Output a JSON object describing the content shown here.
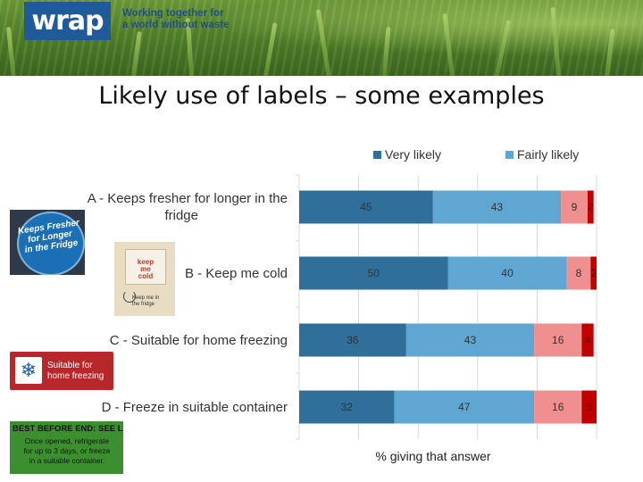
{
  "header": {
    "logo_text": "wrap",
    "tagline_line1": "Working together for",
    "tagline_line2": "a world without waste"
  },
  "slide_title": "Likely use of labels – some examples",
  "images": {
    "a_line1": "Keeps Fresher",
    "a_line2": "for Longer",
    "a_line3": "in the Fridge",
    "b_line1": "keep",
    "b_line2": "me",
    "b_line3": "cold",
    "b_small1": "Keep me in",
    "b_small2": "the fridge",
    "c_line1": "Suitable for",
    "c_line2": "home freezing",
    "d_head": "BEST BEFORE END: SEE LID",
    "d_line1": "Once opened, refrigerate",
    "d_line2": "for up to 3 days, or freeze",
    "d_line3": "in a suitable container."
  },
  "colors": {
    "very_likely": "#2f6f9a",
    "fairly_likely": "#5fa6d2",
    "not_very_likely": "#f08f8f",
    "not_at_all_likely": "#c00000"
  },
  "chart_data": {
    "type": "bar",
    "orientation": "horizontal",
    "stacked": true,
    "categories": [
      "A - Keeps fresher for longer in the fridge",
      "B - Keep me cold",
      "C - Suitable for home freezing",
      "D - Freeze in suitable container"
    ],
    "category_lines": [
      [
        "A - Keeps fresher for longer in the",
        "fridge"
      ],
      [
        "B - Keep me cold"
      ],
      [
        "C - Suitable for home freezing"
      ],
      [
        "D - Freeze in suitable container"
      ]
    ],
    "series": [
      {
        "name": "Very likely",
        "values": [
          45,
          50,
          36,
          32
        ]
      },
      {
        "name": "Fairly likely",
        "values": [
          43,
          40,
          43,
          47
        ]
      },
      {
        "values": [
          9,
          8,
          16,
          16
        ]
      },
      {
        "values": [
          2,
          2,
          4,
          5
        ]
      }
    ],
    "xlabel": "% giving that answer",
    "xlim": [
      0,
      100
    ],
    "legend_position": "top",
    "grid": "vertical"
  }
}
